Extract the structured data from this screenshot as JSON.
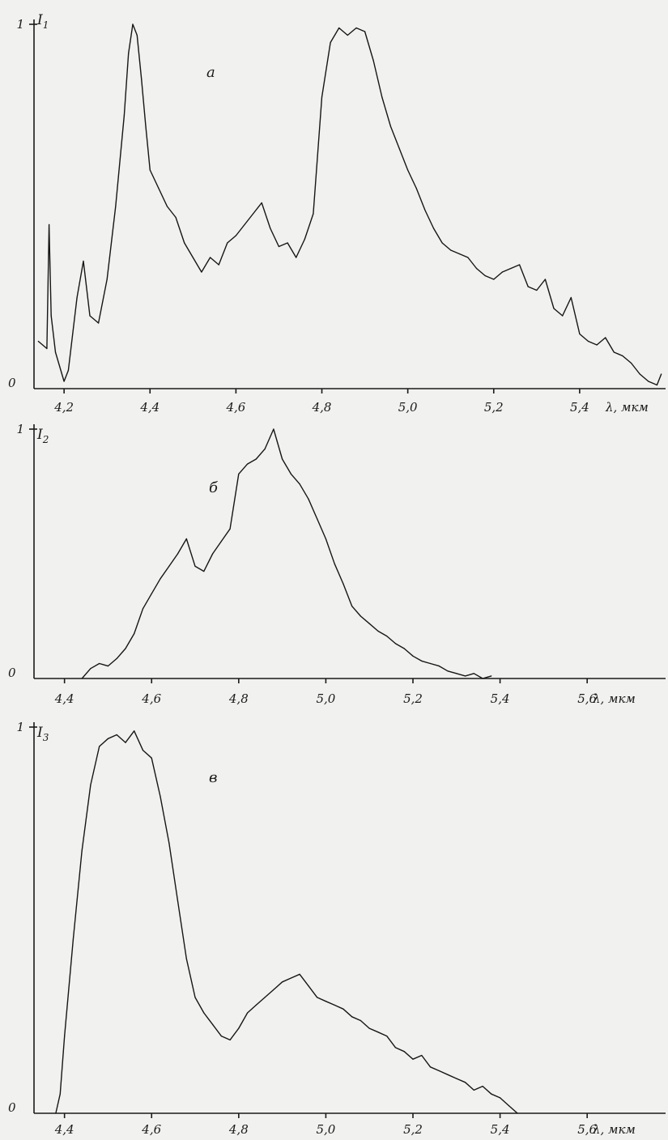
{
  "chart_data": [
    {
      "type": "line",
      "panel_label": "а",
      "ylabel": "I",
      "ylabel_subscript": "1",
      "xlabel": "λ, мкм",
      "y_ticks": [
        "0",
        "1"
      ],
      "x_ticks": [
        {
          "value": 4.2,
          "label": "4,2"
        },
        {
          "value": 4.4,
          "label": "4,4"
        },
        {
          "value": 4.6,
          "label": "4,6"
        },
        {
          "value": 4.8,
          "label": "4,8"
        },
        {
          "value": 5.0,
          "label": "5,0"
        },
        {
          "value": 5.2,
          "label": "5,2"
        },
        {
          "value": 5.4,
          "label": "5,4"
        }
      ],
      "xlim": [
        4.13,
        5.6
      ],
      "ylim": [
        0,
        1
      ],
      "grid": false,
      "x": [
        4.14,
        4.16,
        4.165,
        4.17,
        4.18,
        4.2,
        4.21,
        4.23,
        4.245,
        4.26,
        4.28,
        4.3,
        4.32,
        4.34,
        4.35,
        4.36,
        4.37,
        4.38,
        4.39,
        4.4,
        4.42,
        4.44,
        4.46,
        4.48,
        4.5,
        4.52,
        4.54,
        4.56,
        4.58,
        4.6,
        4.62,
        4.64,
        4.66,
        4.68,
        4.7,
        4.72,
        4.74,
        4.76,
        4.78,
        4.8,
        4.82,
        4.84,
        4.86,
        4.88,
        4.9,
        4.92,
        4.94,
        4.96,
        4.98,
        5.0,
        5.02,
        5.04,
        5.06,
        5.08,
        5.1,
        5.12,
        5.14,
        5.16,
        5.18,
        5.2,
        5.22,
        5.24,
        5.26,
        5.28,
        5.3,
        5.32,
        5.34,
        5.36,
        5.38,
        5.4,
        5.42,
        5.44,
        5.46,
        5.48,
        5.5,
        5.52,
        5.54,
        5.56,
        5.58,
        5.59
      ],
      "y": [
        0.13,
        0.11,
        0.45,
        0.2,
        0.1,
        0.02,
        0.05,
        0.25,
        0.35,
        0.2,
        0.18,
        0.3,
        0.5,
        0.75,
        0.92,
        1.0,
        0.97,
        0.85,
        0.72,
        0.6,
        0.55,
        0.5,
        0.47,
        0.4,
        0.36,
        0.32,
        0.36,
        0.34,
        0.4,
        0.42,
        0.45,
        0.48,
        0.51,
        0.44,
        0.39,
        0.4,
        0.36,
        0.41,
        0.48,
        0.8,
        0.95,
        0.99,
        0.97,
        0.99,
        0.98,
        0.9,
        0.8,
        0.72,
        0.66,
        0.6,
        0.55,
        0.49,
        0.44,
        0.4,
        0.38,
        0.37,
        0.36,
        0.33,
        0.31,
        0.3,
        0.32,
        0.33,
        0.34,
        0.28,
        0.27,
        0.3,
        0.22,
        0.2,
        0.25,
        0.15,
        0.13,
        0.12,
        0.14,
        0.1,
        0.09,
        0.07,
        0.04,
        0.02,
        0.01,
        0.04
      ]
    },
    {
      "type": "line",
      "panel_label": "б",
      "ylabel": "I",
      "ylabel_subscript": "2",
      "xlabel": "λ, мкм",
      "y_ticks": [
        "0",
        "1"
      ],
      "x_ticks": [
        {
          "value": 4.4,
          "label": "4,4"
        },
        {
          "value": 4.6,
          "label": "4,6"
        },
        {
          "value": 4.8,
          "label": "4,8"
        },
        {
          "value": 5.0,
          "label": "5,0"
        },
        {
          "value": 5.2,
          "label": "5,2"
        },
        {
          "value": 5.4,
          "label": "5,4"
        },
        {
          "value": 5.6,
          "label": "5,6"
        }
      ],
      "xlim": [
        4.33,
        5.78
      ],
      "ylim": [
        0,
        1
      ],
      "grid": false,
      "x": [
        4.44,
        4.46,
        4.48,
        4.5,
        4.52,
        4.54,
        4.56,
        4.58,
        4.6,
        4.62,
        4.64,
        4.66,
        4.68,
        4.7,
        4.72,
        4.74,
        4.76,
        4.78,
        4.8,
        4.82,
        4.84,
        4.86,
        4.88,
        4.9,
        4.92,
        4.94,
        4.96,
        4.98,
        5.0,
        5.02,
        5.04,
        5.06,
        5.08,
        5.1,
        5.12,
        5.14,
        5.16,
        5.18,
        5.2,
        5.22,
        5.24,
        5.26,
        5.28,
        5.3,
        5.32,
        5.34,
        5.36,
        5.38
      ],
      "y": [
        0.0,
        0.04,
        0.06,
        0.05,
        0.08,
        0.12,
        0.18,
        0.28,
        0.34,
        0.4,
        0.45,
        0.5,
        0.56,
        0.45,
        0.43,
        0.5,
        0.55,
        0.6,
        0.82,
        0.86,
        0.88,
        0.92,
        1.0,
        0.88,
        0.82,
        0.78,
        0.72,
        0.64,
        0.56,
        0.46,
        0.38,
        0.29,
        0.25,
        0.22,
        0.19,
        0.17,
        0.14,
        0.12,
        0.09,
        0.07,
        0.06,
        0.05,
        0.03,
        0.02,
        0.01,
        0.02,
        0.0,
        0.01
      ]
    },
    {
      "type": "line",
      "panel_label": "в",
      "ylabel": "I",
      "ylabel_subscript": "3",
      "xlabel": "λ, мкм",
      "y_ticks": [
        "0",
        "1"
      ],
      "x_ticks": [
        {
          "value": 4.4,
          "label": "4,4"
        },
        {
          "value": 4.6,
          "label": "4,6"
        },
        {
          "value": 4.8,
          "label": "4,8"
        },
        {
          "value": 5.0,
          "label": "5,0"
        },
        {
          "value": 5.2,
          "label": "5,2"
        },
        {
          "value": 5.4,
          "label": "5,4"
        },
        {
          "value": 5.6,
          "label": "5,6"
        }
      ],
      "xlim": [
        4.33,
        5.78
      ],
      "ylim": [
        0,
        1
      ],
      "grid": false,
      "x": [
        4.38,
        4.39,
        4.4,
        4.42,
        4.44,
        4.46,
        4.48,
        4.5,
        4.52,
        4.54,
        4.56,
        4.58,
        4.6,
        4.62,
        4.64,
        4.66,
        4.68,
        4.7,
        4.72,
        4.74,
        4.76,
        4.78,
        4.8,
        4.82,
        4.84,
        4.86,
        4.88,
        4.9,
        4.92,
        4.94,
        4.96,
        4.98,
        5.0,
        5.02,
        5.04,
        5.06,
        5.08,
        5.1,
        5.12,
        5.14,
        5.16,
        5.18,
        5.2,
        5.22,
        5.24,
        5.26,
        5.28,
        5.3,
        5.32,
        5.34,
        5.36,
        5.38,
        5.4,
        5.42,
        5.44
      ],
      "y": [
        0.0,
        0.05,
        0.2,
        0.45,
        0.68,
        0.85,
        0.95,
        0.97,
        0.98,
        0.96,
        0.99,
        0.94,
        0.92,
        0.82,
        0.7,
        0.55,
        0.4,
        0.3,
        0.26,
        0.23,
        0.2,
        0.19,
        0.22,
        0.26,
        0.28,
        0.3,
        0.32,
        0.34,
        0.35,
        0.36,
        0.33,
        0.3,
        0.29,
        0.28,
        0.27,
        0.25,
        0.24,
        0.22,
        0.21,
        0.2,
        0.17,
        0.16,
        0.14,
        0.15,
        0.12,
        0.11,
        0.1,
        0.09,
        0.08,
        0.06,
        0.07,
        0.05,
        0.04,
        0.02,
        0.0
      ]
    }
  ]
}
